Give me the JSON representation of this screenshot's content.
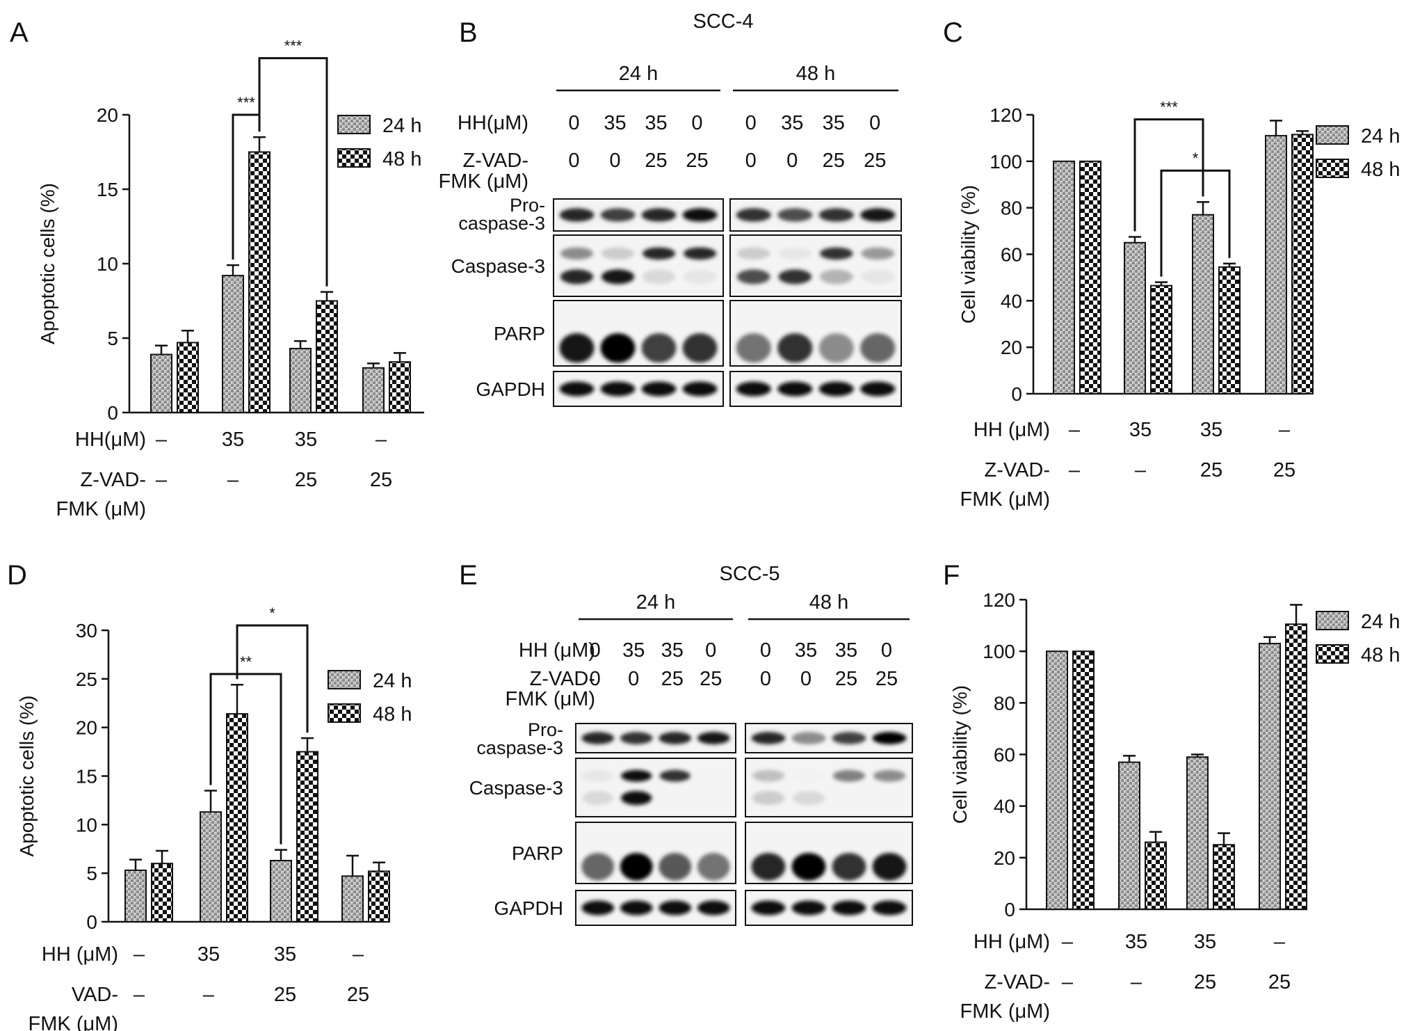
{
  "chart_data": [
    {
      "panel": "A",
      "type": "bar",
      "ylabel": "Apoptotic cells (%)",
      "ylim": [
        0,
        20
      ],
      "yticks": [
        0,
        5,
        10,
        15,
        20
      ],
      "legend": {
        "placement": "top-right",
        "entries": [
          "24 h",
          "48 h"
        ]
      },
      "series": [
        {
          "name": "24 h",
          "values": [
            3.9,
            9.2,
            4.3,
            3.0
          ],
          "errors": [
            0.6,
            0.7,
            0.5,
            0.3
          ]
        },
        {
          "name": "48 h",
          "values": [
            4.7,
            17.5,
            7.5,
            3.4
          ],
          "errors": [
            0.8,
            1.0,
            0.6,
            0.6
          ]
        }
      ],
      "treatments": [
        {
          "label": "HH(μM)",
          "values": [
            "–",
            "35",
            "35",
            "–"
          ]
        },
        {
          "label": "Z-VAD-FMK (μM)",
          "values": [
            "–",
            "–",
            "25",
            "25"
          ]
        }
      ],
      "annotations": [
        {
          "text": "***",
          "from": [
            1,
            1
          ],
          "to": [
            1,
            0
          ],
          "level": 20
        },
        {
          "text": "***",
          "from": [
            1,
            1
          ],
          "to": [
            2,
            1
          ],
          "level": 23.8
        }
      ]
    },
    {
      "panel": "C",
      "type": "bar",
      "ylabel": "Cell viability (%)",
      "ylim": [
        0,
        120
      ],
      "yticks": [
        0,
        20,
        40,
        60,
        80,
        100,
        120
      ],
      "legend": {
        "placement": "top-right",
        "entries": [
          "24 h",
          "48 h"
        ]
      },
      "series": [
        {
          "name": "24 h",
          "values": [
            100,
            65,
            77,
            111
          ],
          "errors": [
            0,
            2.5,
            5.5,
            6.5
          ]
        },
        {
          "name": "48 h",
          "values": [
            100,
            46.5,
            54.5,
            111.5
          ],
          "errors": [
            0,
            1.5,
            1.5,
            1.5
          ]
        }
      ],
      "treatments": [
        {
          "label": "HH (μM)",
          "values": [
            "–",
            "35",
            "35",
            "–"
          ]
        },
        {
          "label": "Z-VAD-FMK (μM)",
          "values": [
            "–",
            "–",
            "25",
            "25"
          ]
        }
      ],
      "annotations": [
        {
          "text": "***",
          "from": [
            1,
            0
          ],
          "to": [
            2,
            0
          ],
          "level": 118
        },
        {
          "text": "*",
          "from": [
            1,
            1
          ],
          "to": [
            2,
            1
          ],
          "level": 96
        }
      ]
    },
    {
      "panel": "D",
      "type": "bar",
      "ylabel": "Apoptotic cells (%)",
      "ylim": [
        0,
        30
      ],
      "yticks": [
        0,
        5,
        10,
        15,
        20,
        25,
        30
      ],
      "legend": {
        "placement": "top-right",
        "entries": [
          "24 h",
          "48 h"
        ]
      },
      "series": [
        {
          "name": "24 h",
          "values": [
            5.3,
            11.3,
            6.3,
            4.7
          ],
          "errors": [
            1.1,
            2.2,
            1.1,
            2.1
          ]
        },
        {
          "name": "48 h",
          "values": [
            6.0,
            21.4,
            17.5,
            5.2
          ],
          "errors": [
            1.3,
            3.0,
            1.4,
            0.9
          ]
        }
      ],
      "treatments": [
        {
          "label": "HH (μM)",
          "values": [
            "–",
            "35",
            "35",
            "–"
          ]
        },
        {
          "label": "VAD-FMK (μM)",
          "values": [
            "–",
            "–",
            "25",
            "25"
          ]
        }
      ],
      "annotations": [
        {
          "text": "**",
          "from": [
            1,
            0
          ],
          "to": [
            2,
            0
          ],
          "level": 25.5
        },
        {
          "text": "*",
          "from": [
            1,
            1
          ],
          "to": [
            2,
            1
          ],
          "level": 30.5
        }
      ]
    },
    {
      "panel": "F",
      "type": "bar",
      "ylabel": "Cell viability (%)",
      "ylim": [
        0,
        120
      ],
      "yticks": [
        0,
        20,
        40,
        60,
        80,
        100,
        120
      ],
      "legend": {
        "placement": "top-right",
        "entries": [
          "24 h",
          "48 h"
        ]
      },
      "series": [
        {
          "name": "24 h",
          "values": [
            100,
            57,
            59,
            103
          ],
          "errors": [
            0,
            2.5,
            1.0,
            2.5
          ]
        },
        {
          "name": "48 h",
          "values": [
            100,
            26,
            25,
            110.5
          ],
          "errors": [
            0,
            4,
            4.5,
            7.5
          ]
        }
      ],
      "treatments": [
        {
          "label": "HH (μM)",
          "values": [
            "–",
            "35",
            "35",
            "–"
          ]
        },
        {
          "label": "Z-VAD-FMK (μM)",
          "values": [
            "–",
            "–",
            "25",
            "25"
          ]
        }
      ],
      "annotations": []
    }
  ],
  "blots": [
    {
      "panel": "B",
      "title": "SCC-4",
      "timepoints": [
        "24 h",
        "48 h"
      ],
      "hh_label": "HH(μM)",
      "hh_values": [
        "0",
        "35",
        "35",
        "0"
      ],
      "zvad_label": [
        "Z-VAD-",
        "FMK (μM)"
      ],
      "zvad_values": [
        "0",
        "0",
        "25",
        "25"
      ],
      "bands": [
        {
          "label": [
            "Pro-",
            "caspase-3"
          ],
          "lanes24": [
            0.85,
            0.75,
            0.85,
            0.95
          ],
          "lanes48": [
            0.8,
            0.7,
            0.8,
            0.9
          ]
        },
        {
          "label": [
            "Caspase-3"
          ],
          "cleaved24": [
            0.85,
            0.9,
            0.15,
            0.1
          ],
          "pro24": [
            0.45,
            0.2,
            0.85,
            0.85
          ],
          "cleaved48": [
            0.7,
            0.8,
            0.3,
            0.1
          ],
          "pro48": [
            0.2,
            0.1,
            0.8,
            0.4
          ]
        },
        {
          "label": [
            "PARP"
          ],
          "lanes24": [
            0.9,
            1.0,
            0.75,
            0.8
          ],
          "lanes48": [
            0.55,
            0.8,
            0.45,
            0.6
          ]
        },
        {
          "label": [
            "GAPDH"
          ],
          "lanes24": [
            0.95,
            0.95,
            0.95,
            0.95
          ],
          "lanes48": [
            0.95,
            0.95,
            0.95,
            0.95
          ]
        }
      ]
    },
    {
      "panel": "E",
      "title": "SCC-5",
      "timepoints": [
        "24 h",
        "48 h"
      ],
      "hh_label": "HH (μM)",
      "hh_values": [
        "0",
        "35",
        "35",
        "0"
      ],
      "zvad_label": [
        "Z-VAD-",
        "FMK (μM)"
      ],
      "zvad_values": [
        "0",
        "0",
        "25",
        "25"
      ],
      "bands": [
        {
          "label": [
            "Pro-",
            "caspase-3"
          ],
          "lanes24": [
            0.85,
            0.8,
            0.85,
            0.9
          ],
          "lanes48": [
            0.85,
            0.45,
            0.75,
            1.0
          ]
        },
        {
          "label": [
            "Caspase-3"
          ],
          "pro24": [
            0.1,
            0.95,
            0.8,
            0.0
          ],
          "cleaved24": [
            0.15,
            0.95,
            0.0,
            0.0
          ],
          "pro48": [
            0.25,
            0.05,
            0.5,
            0.45
          ],
          "cleaved48": [
            0.2,
            0.15,
            0.0,
            0.0
          ]
        },
        {
          "label": [
            "PARP"
          ],
          "lanes24": [
            0.6,
            1.0,
            0.65,
            0.55
          ],
          "lanes48": [
            0.85,
            1.0,
            0.8,
            0.9
          ]
        },
        {
          "label": [
            "GAPDH"
          ],
          "lanes24": [
            0.95,
            0.95,
            0.95,
            0.95
          ],
          "lanes48": [
            0.95,
            0.95,
            0.95,
            0.95
          ]
        }
      ]
    }
  ]
}
